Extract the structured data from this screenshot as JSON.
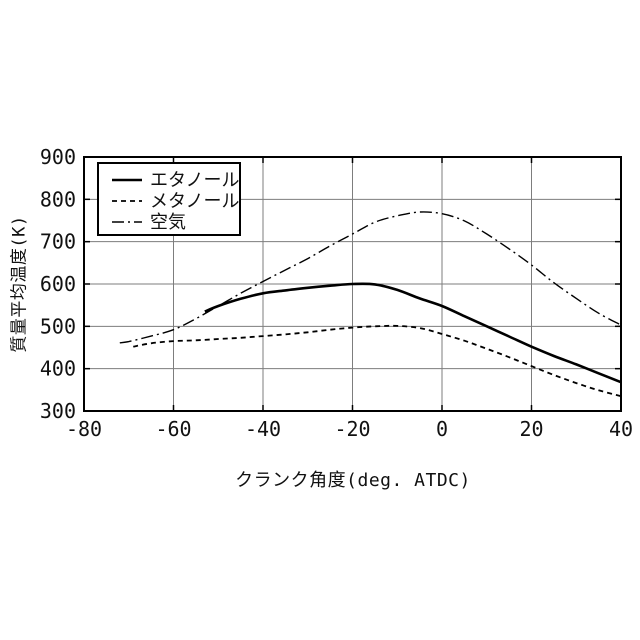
{
  "chart_data": {
    "type": "line",
    "title": "",
    "xlabel": "クランク角度(deg. ATDC)",
    "ylabel": "質量平均温度(K)",
    "xlim": [
      -80,
      40
    ],
    "ylim": [
      300,
      900
    ],
    "x_ticks": [
      -80,
      -60,
      -40,
      -20,
      0,
      20,
      40
    ],
    "y_ticks": [
      300,
      400,
      500,
      600,
      700,
      800,
      900
    ],
    "grid": true,
    "legend_position": "upper-left",
    "background_color": "#ffffff",
    "axis_color": "#000000",
    "grid_color": "#7d7d7d",
    "series": [
      {
        "name": "エタノール",
        "line_style": "solid",
        "color": "#000000",
        "x": [
          -53,
          -50,
          -45,
          -40,
          -35,
          -30,
          -25,
          -20,
          -15,
          -10,
          -5,
          0,
          5,
          10,
          15,
          20,
          25,
          30,
          35,
          40
        ],
        "y": [
          535,
          548,
          565,
          578,
          585,
          591,
          596,
          600,
          599,
          586,
          566,
          548,
          524,
          500,
          476,
          452,
          430,
          410,
          389,
          368
        ]
      },
      {
        "name": "メタノール",
        "line_style": "dashed",
        "color": "#000000",
        "x": [
          -69,
          -65,
          -60,
          -55,
          -50,
          -45,
          -40,
          -35,
          -30,
          -25,
          -20,
          -15,
          -10,
          -5,
          0,
          5,
          10,
          15,
          20,
          25,
          30,
          35,
          40
        ],
        "y": [
          452,
          460,
          465,
          467,
          470,
          473,
          477,
          481,
          486,
          492,
          497,
          500,
          501,
          496,
          482,
          466,
          447,
          427,
          406,
          385,
          366,
          349,
          335
        ]
      },
      {
        "name": "空気",
        "line_style": "dashdot",
        "color": "#000000",
        "x": [
          -72,
          -70,
          -65,
          -60,
          -55,
          -50,
          -45,
          -40,
          -35,
          -30,
          -25,
          -20,
          -15,
          -10,
          -5,
          0,
          5,
          10,
          15,
          20,
          25,
          30,
          35,
          40
        ],
        "y": [
          461,
          464,
          477,
          492,
          518,
          548,
          578,
          606,
          633,
          660,
          690,
          718,
          746,
          761,
          770,
          766,
          749,
          718,
          683,
          645,
          603,
          566,
          531,
          503
        ]
      }
    ]
  }
}
